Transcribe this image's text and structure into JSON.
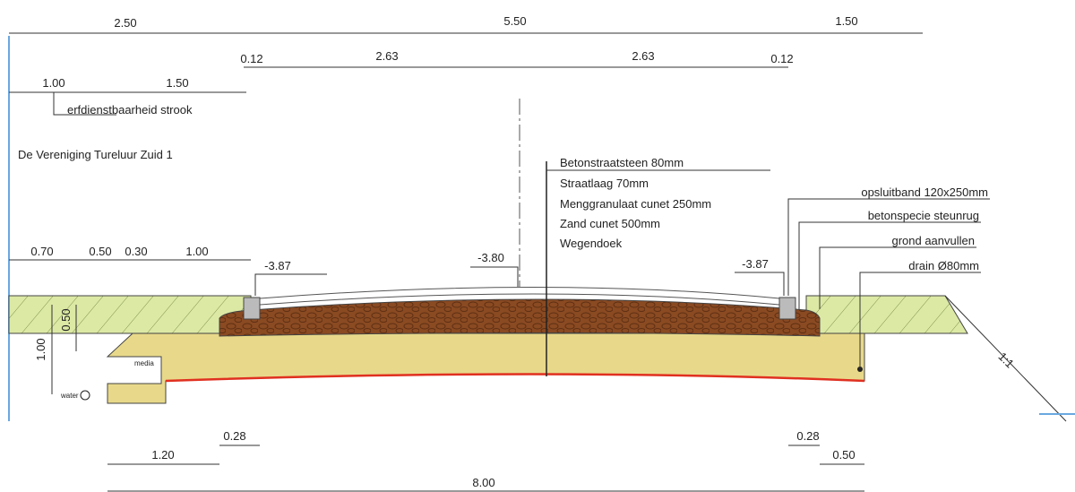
{
  "title": "De Vereniging Tureluur Zuid 1",
  "dimensions_top": [
    "2.50",
    "5.50",
    "1.50"
  ],
  "dimensions_road": [
    "0.12",
    "2.63",
    "2.63",
    "0.12"
  ],
  "dimensions_strip": [
    "1.00",
    "1.50"
  ],
  "strip_label": "erfdienstbaarheid strook",
  "dimensions_left": [
    "0.70",
    "0.50",
    "0.30",
    "1.00"
  ],
  "levels": [
    "-3.87",
    "-3.80",
    "-3.87"
  ],
  "layers": [
    "Betonstraatsteen 80mm",
    "Straatlaag 70mm",
    "Menggranulaat cunet 250mm",
    "Zand cunet 500mm",
    "Wegendoek"
  ],
  "callouts": [
    "opsluitband 120x250mm",
    "betonspecie steunrug",
    "grond aanvullen",
    "drain Ø80mm"
  ],
  "vertical_dimensions": [
    "0.50",
    "1.00"
  ],
  "slope": "1:1",
  "water_label": "water",
  "media_label": "media",
  "dimensions_bottom": [
    "0.28",
    "1.20",
    "0.28",
    "0.50",
    "8.00"
  ]
}
